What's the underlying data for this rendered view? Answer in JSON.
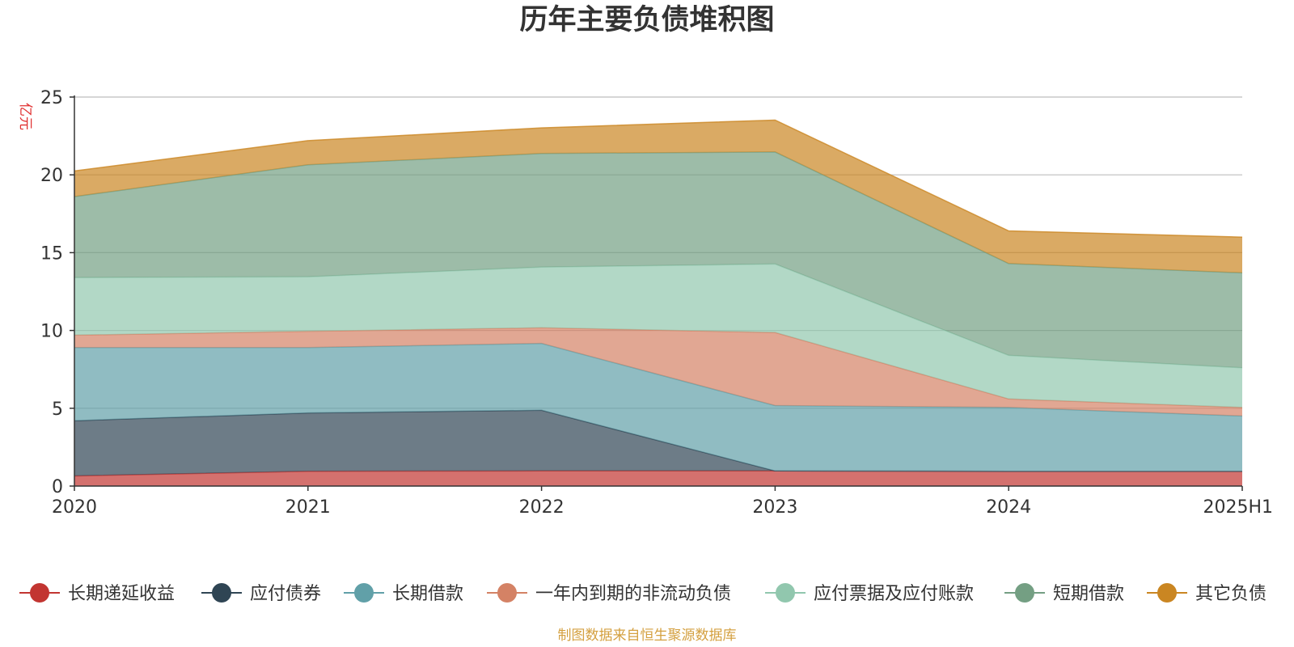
{
  "chart_data": {
    "type": "area",
    "stacked": true,
    "title": "历年主要负债堆积图",
    "unit_label": "亿元",
    "categories": [
      "2020",
      "2021",
      "2022",
      "2023",
      "2024",
      "2025H1"
    ],
    "ylim": [
      0,
      25
    ],
    "yticks": [
      0,
      5,
      10,
      15,
      20,
      25
    ],
    "grid": true,
    "legend_position": "bottom",
    "series": [
      {
        "name": "长期递延收益",
        "color": "#c23531",
        "values": [
          0.65,
          0.95,
          0.97,
          0.97,
          0.95,
          0.95
        ]
      },
      {
        "name": "应付债券",
        "color": "#2f4554",
        "values": [
          3.55,
          3.75,
          3.9,
          0.0,
          0.0,
          0.0
        ]
      },
      {
        "name": "长期借款",
        "color": "#61a0a8",
        "values": [
          4.7,
          4.2,
          4.3,
          4.2,
          4.1,
          3.55
        ]
      },
      {
        "name": "一年内到期的非流动负债",
        "color": "#d48265",
        "values": [
          0.8,
          1.05,
          1.0,
          4.7,
          0.55,
          0.55
        ]
      },
      {
        "name": "应付票据及应付账款",
        "color": "#91c7ae",
        "values": [
          3.7,
          3.5,
          3.9,
          4.4,
          2.8,
          2.55
        ]
      },
      {
        "name": "短期借款",
        "color": "#749f83",
        "values": [
          5.2,
          7.2,
          7.3,
          7.2,
          5.9,
          6.1
        ]
      },
      {
        "name": "其它负债",
        "color": "#ca8622",
        "values": [
          1.65,
          1.55,
          1.65,
          2.05,
          2.1,
          2.3
        ]
      }
    ]
  },
  "footer": {
    "source": "制图数据来自恒生聚源数据库"
  }
}
